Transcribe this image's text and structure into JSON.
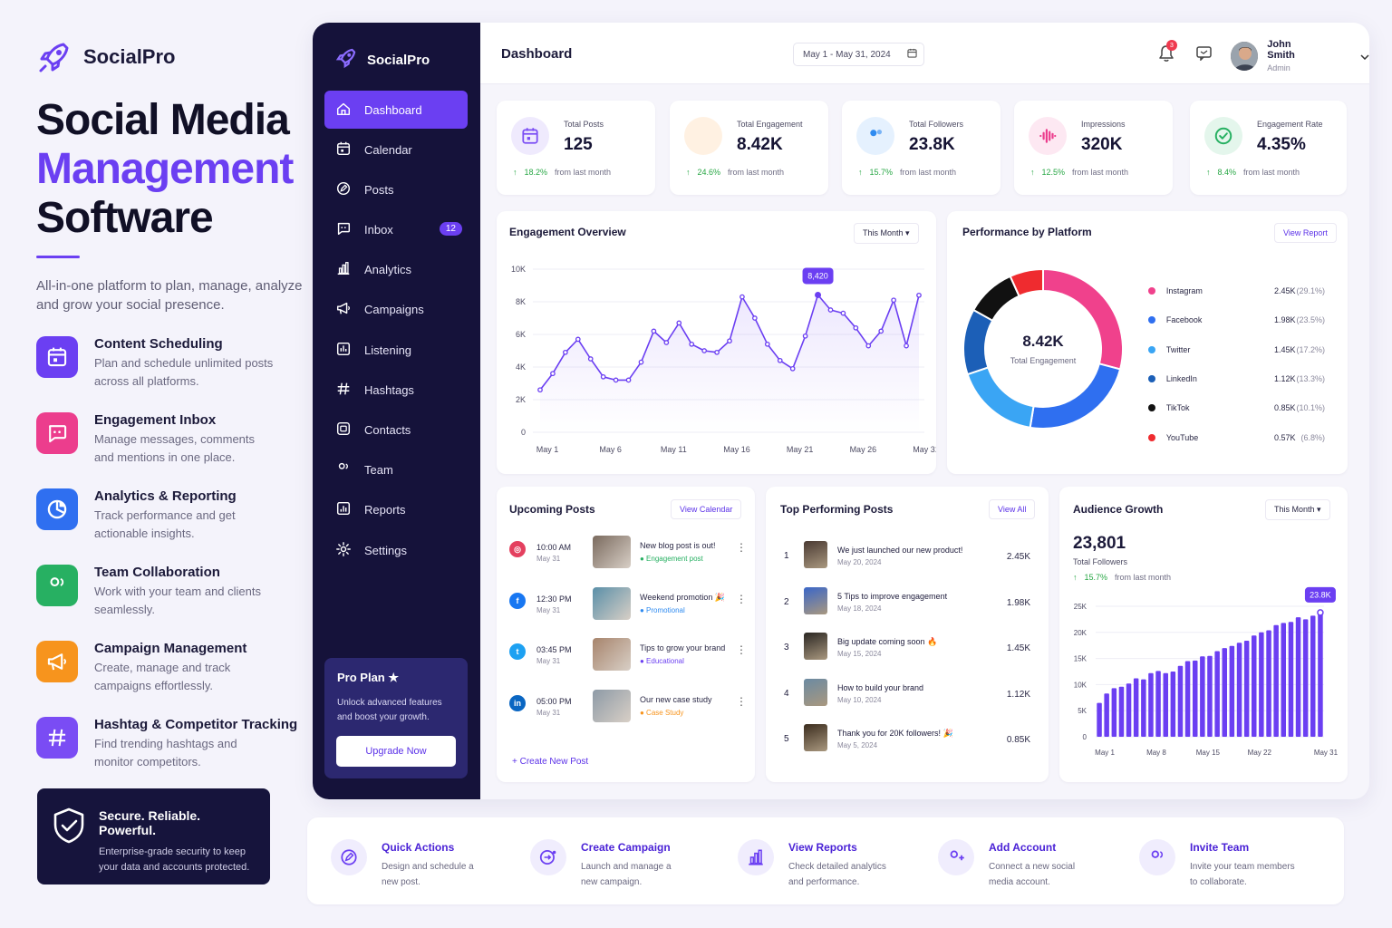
{
  "brand": {
    "name": "SocialPro"
  },
  "hero": {
    "line1": "Social Media",
    "line2": "Management",
    "line3": "Software",
    "subtitle": "All-in-one platform to plan, manage, analyze and grow your social presence."
  },
  "features": [
    {
      "title": "Content Scheduling",
      "desc": "Plan and schedule unlimited posts across all platforms.",
      "icon": "calendar-icon",
      "color": "#6b3ff2"
    },
    {
      "title": "Engagement Inbox",
      "desc": "Manage messages, comments and mentions in one place.",
      "icon": "chat-icon",
      "color": "#ec3d8d"
    },
    {
      "title": "Analytics & Reporting",
      "desc": "Track performance and get actionable insights.",
      "icon": "pie-chart-icon",
      "color": "#2f6ff0"
    },
    {
      "title": "Team Collaboration",
      "desc": "Work with your team and clients seamlessly.",
      "icon": "team-icon",
      "color": "#27b062"
    },
    {
      "title": "Campaign Management",
      "desc": "Create, manage and track campaigns effortlessly.",
      "icon": "megaphone-icon",
      "color": "#f7941d"
    },
    {
      "title": "Hashtag & Competitor Tracking",
      "desc": "Find trending hashtags and monitor competitors.",
      "icon": "hashtag-icon",
      "color": "#7a4cf4"
    }
  ],
  "secure": {
    "title": "Secure. Reliable. Powerful.",
    "desc": "Enterprise-grade security to keep your data and accounts protected."
  },
  "sidebar": {
    "brand": "SocialPro",
    "items": [
      {
        "label": "Dashboard",
        "icon": "home-icon",
        "active": true
      },
      {
        "label": "Calendar",
        "icon": "calendar-icon"
      },
      {
        "label": "Posts",
        "icon": "edit-icon"
      },
      {
        "label": "Inbox",
        "icon": "chat-icon",
        "badge": "12"
      },
      {
        "label": "Analytics",
        "icon": "bar-chart-icon"
      },
      {
        "label": "Campaigns",
        "icon": "megaphone-icon"
      },
      {
        "label": "Listening",
        "icon": "listening-icon"
      },
      {
        "label": "Hashtags",
        "icon": "hashtag-icon"
      },
      {
        "label": "Contacts",
        "icon": "contacts-icon"
      },
      {
        "label": "Team",
        "icon": "team-icon"
      },
      {
        "label": "Reports",
        "icon": "reports-icon"
      },
      {
        "label": "Settings",
        "icon": "gear-icon"
      }
    ],
    "pro": {
      "title": "Pro Plan ★",
      "desc": "Unlock advanced features and boost your growth.",
      "button": "Upgrade Now"
    }
  },
  "topbar": {
    "title": "Dashboard",
    "date_range": "May 1 - May 31, 2024",
    "notif_count": "3",
    "user_name": "John Smith",
    "user_role": "Admin"
  },
  "stats": [
    {
      "label": "Total Posts",
      "value": "125",
      "trend": "18.2%",
      "note": "from last month",
      "icon": "calendar-icon",
      "color": "#7a4cf4",
      "bg": "#efeafd"
    },
    {
      "label": "Total Engagement",
      "value": "8.42K",
      "trend": "24.6%",
      "note": "from last month",
      "icon": "heart-hand-icon",
      "color": "#f7941d",
      "bg": "#fff1e2"
    },
    {
      "label": "Total Followers",
      "value": "23.8K",
      "trend": "15.7%",
      "note": "from last month",
      "icon": "users-icon",
      "color": "#2f8bf0",
      "bg": "#e5f1fe"
    },
    {
      "label": "Impressions",
      "value": "320K",
      "trend": "12.5%",
      "note": "from last month",
      "icon": "waveform-icon",
      "color": "#ec3d8d",
      "bg": "#fde8f2"
    },
    {
      "label": "Engagement Rate",
      "value": "4.35%",
      "trend": "8.4%",
      "note": "from last month",
      "icon": "check-circle-icon",
      "color": "#27b062",
      "bg": "#e4f6ec"
    }
  ],
  "engagement": {
    "title": "Engagement Overview",
    "period": "This Month ▾"
  },
  "performance": {
    "title": "Performance by Platform",
    "link": "View Report",
    "center_value": "8.42K",
    "center_label": "Total Engagement"
  },
  "upcoming": {
    "title": "Upcoming Posts",
    "link": "View Calendar",
    "create": "+ Create New Post",
    "items": [
      {
        "time": "10:00 AM",
        "date": "May 31",
        "title": "New blog post is out!",
        "tag": "● Engagement post",
        "tag_color": "#27b062",
        "network": "instagram-icon",
        "net_color": "#e4405f",
        "net_glyph": "◎",
        "thumb": "#7a6a5e"
      },
      {
        "time": "12:30 PM",
        "date": "May 31",
        "title": "Weekend promotion 🎉",
        "tag": "● Promotional",
        "tag_color": "#2f8bf0",
        "network": "facebook-icon",
        "net_color": "#1877f2",
        "net_glyph": "f",
        "thumb": "#5a8fa8"
      },
      {
        "time": "03:45 PM",
        "date": "May 31",
        "title": "Tips to grow your brand",
        "tag": "● Educational",
        "tag_color": "#6b3ff2",
        "network": "twitter-icon",
        "net_color": "#1da1f2",
        "net_glyph": "t",
        "thumb": "#a7846c"
      },
      {
        "time": "05:00 PM",
        "date": "May 31",
        "title": "Our new case study",
        "tag": "● Case Study",
        "tag_color": "#f7941d",
        "network": "linkedin-icon",
        "net_color": "#0a66c2",
        "net_glyph": "in",
        "thumb": "#8d9aa6"
      }
    ]
  },
  "top_posts": {
    "title": "Top Performing Posts",
    "link": "View All",
    "items": [
      {
        "rank": "1",
        "title": "We just launched our new product!",
        "date": "May 20, 2024",
        "value": "2.45K",
        "thumb": "#4a3a33"
      },
      {
        "rank": "2",
        "title": "5 Tips to improve engagement",
        "date": "May 18, 2024",
        "value": "1.98K",
        "thumb": "#3a66c8"
      },
      {
        "rank": "3",
        "title": "Big update coming soon 🔥",
        "date": "May 15, 2024",
        "value": "1.45K",
        "thumb": "#2a2622"
      },
      {
        "rank": "4",
        "title": "How to build your brand",
        "date": "May 10, 2024",
        "value": "1.12K",
        "thumb": "#6b8aa2"
      },
      {
        "rank": "5",
        "title": "Thank you for 20K followers! 🎉",
        "date": "May 5, 2024",
        "value": "0.85K",
        "thumb": "#3b2c1e"
      }
    ]
  },
  "audience": {
    "title": "Audience Growth",
    "period": "This Month ▾",
    "value": "23,801",
    "label": "Total Followers",
    "trend": "15.7%",
    "note": "from last month"
  },
  "quick_actions": [
    {
      "title": "Quick Actions",
      "desc": "Design and schedule a new post.",
      "icon": "edit-icon"
    },
    {
      "title": "Create Campaign",
      "desc": "Launch and manage a new campaign.",
      "icon": "campaign-icon"
    },
    {
      "title": "View Reports",
      "desc": "Check detailed analytics and performance.",
      "icon": "bar-chart-icon"
    },
    {
      "title": "Add Account",
      "desc": "Connect a new social media account.",
      "icon": "add-user-icon"
    },
    {
      "title": "Invite Team",
      "desc": "Invite your team members to collaborate.",
      "icon": "team-icon"
    }
  ],
  "chart_data": [
    {
      "type": "line",
      "title": "Engagement Overview",
      "x": [
        "May 1",
        "May 2",
        "May 3",
        "May 4",
        "May 5",
        "May 6",
        "May 7",
        "May 8",
        "May 9",
        "May 10",
        "May 11",
        "May 12",
        "May 13",
        "May 14",
        "May 15",
        "May 16",
        "May 17",
        "May 18",
        "May 19",
        "May 20",
        "May 21",
        "May 22",
        "May 23",
        "May 24",
        "May 25",
        "May 26",
        "May 27",
        "May 28",
        "May 29",
        "May 30",
        "May 31"
      ],
      "x_ticks": [
        "May 1",
        "May 6",
        "May 11",
        "May 16",
        "May 21",
        "May 26",
        "May 31"
      ],
      "series": [
        {
          "values": [
            2600,
            3600,
            4900,
            5700,
            4500,
            3400,
            3200,
            3200,
            4300,
            6200,
            5500,
            6700,
            5400,
            5000,
            4900,
            5600,
            8300,
            7000,
            5400,
            4400,
            3900,
            5900,
            8420,
            7500,
            7300,
            6400,
            5300,
            6200,
            8100,
            5300,
            8400
          ]
        }
      ],
      "y_ticks": [
        0,
        2000,
        4000,
        6000,
        8000,
        10000
      ],
      "y_tick_labels": [
        "0",
        "2K",
        "4K",
        "6K",
        "8K",
        "10K"
      ],
      "ylim": [
        0,
        10000
      ],
      "annotation": {
        "x": "May 23",
        "label": "8,420"
      },
      "color": "#6b3ff2"
    },
    {
      "type": "pie",
      "title": "Performance by Platform",
      "categories": [
        "Instagram",
        "Facebook",
        "Twitter",
        "LinkedIn",
        "TikTok",
        "YouTube"
      ],
      "values": [
        2450,
        1980,
        1450,
        1120,
        850,
        570
      ],
      "labels": [
        "2.45K",
        "1.98K",
        "1.45K",
        "1.12K",
        "0.85K",
        "0.57K"
      ],
      "percent_labels": [
        "(29.1%)",
        "(23.5%)",
        "(17.2%)",
        "(13.3%)",
        "(10.1%)",
        "(6.8%)"
      ],
      "colors": [
        "#f0418c",
        "#2f6ff0",
        "#3aa5f4",
        "#1c5fb7",
        "#111111",
        "#ef2b2f"
      ]
    },
    {
      "type": "bar",
      "title": "Audience Growth",
      "categories": [
        "May 1",
        "May 2",
        "May 3",
        "May 4",
        "May 5",
        "May 6",
        "May 7",
        "May 8",
        "May 9",
        "May 10",
        "May 11",
        "May 12",
        "May 13",
        "May 14",
        "May 15",
        "May 16",
        "May 17",
        "May 18",
        "May 19",
        "May 20",
        "May 21",
        "May 22",
        "May 23",
        "May 24",
        "May 25",
        "May 26",
        "May 27",
        "May 28",
        "May 29",
        "May 30",
        "May 31"
      ],
      "x_ticks": [
        "May 1",
        "May 8",
        "May 15",
        "May 22",
        "May 31"
      ],
      "values": [
        6500,
        8300,
        9300,
        9600,
        10200,
        11200,
        11000,
        12200,
        12600,
        12200,
        12500,
        13600,
        14500,
        14600,
        15400,
        15500,
        16400,
        17000,
        17400,
        18000,
        18400,
        19400,
        20000,
        20400,
        21400,
        21800,
        22000,
        22900,
        22500,
        23200,
        23800
      ],
      "y_ticks": [
        0,
        5000,
        10000,
        15000,
        20000,
        25000
      ],
      "y_tick_labels": [
        "0",
        "5K",
        "10K",
        "15K",
        "20K",
        "25K"
      ],
      "ylim": [
        0,
        25000
      ],
      "annotation": {
        "x": "May 31",
        "label": "23.8K"
      },
      "color": "#6b3ff2"
    }
  ]
}
